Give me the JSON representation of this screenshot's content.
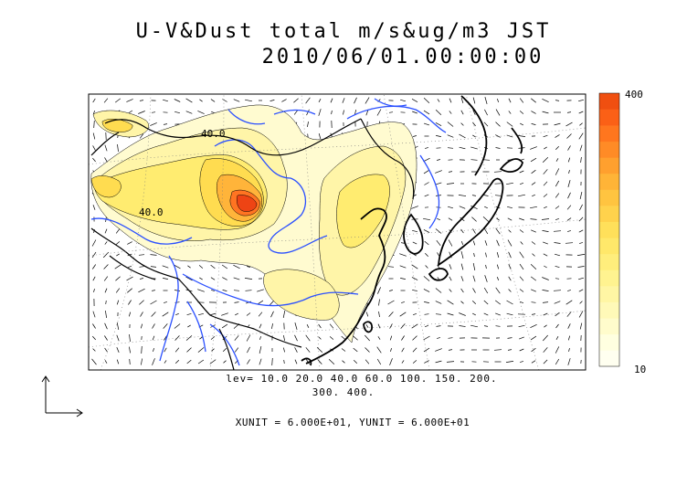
{
  "title": {
    "line1": "U-V&Dust total m/s&ug/m3 JST",
    "line2": "2010/06/01.00:00:00"
  },
  "contour_labels": [
    "40.0",
    "40.0"
  ],
  "levels_text": {
    "line1": "lev= 10.0 20.0 40.0 60.0 100. 150. 200.",
    "line2": "300. 400."
  },
  "units_text": "XUNIT = 6.000E+01, YUNIT = 6.000E+01",
  "colorbar": {
    "max_label": "400",
    "min_label": "10",
    "colors": [
      "#fffff0",
      "#ffffe0",
      "#fffccc",
      "#fff9b8",
      "#fff6a4",
      "#fff390",
      "#ffee7c",
      "#ffe86a",
      "#ffe05a",
      "#ffd24c",
      "#ffc440",
      "#ffb437",
      "#ffa02e",
      "#ff8b26",
      "#ff761e",
      "#fb6016",
      "#f04f10"
    ]
  },
  "colors": {
    "coast": "#000000",
    "rivers": "#2b50ff",
    "dust_peak": "#e8441a"
  }
}
